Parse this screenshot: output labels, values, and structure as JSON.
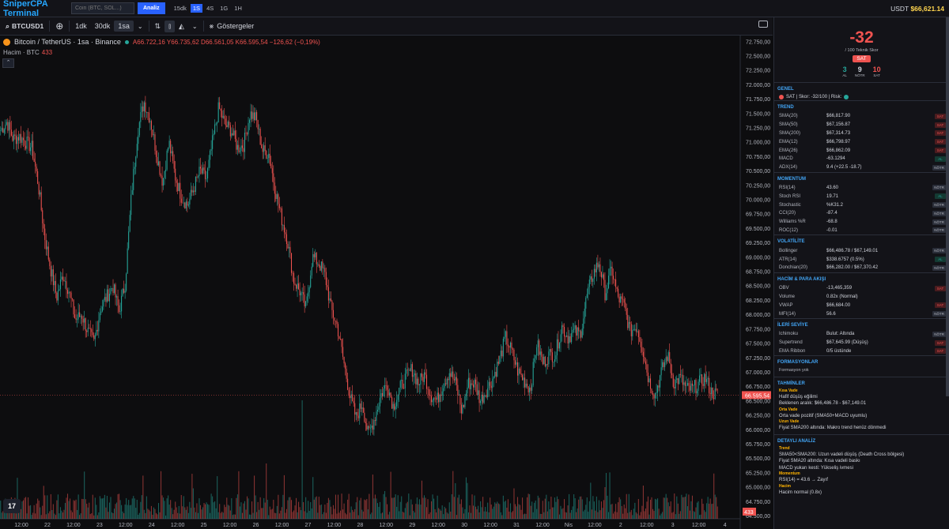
{
  "topbar": {
    "brand": "SniperCPA Terminal",
    "coin_placeholder": "Coin (BTC, SOL...)",
    "analyze_label": "Analiz",
    "timeframes": [
      "15dk",
      "1S",
      "4S",
      "1G",
      "1H"
    ],
    "active_timeframe": "1S",
    "balance_label": "USDT",
    "balance_value": "$66,621.14"
  },
  "toolbar": {
    "symbol": "BTCUSD1",
    "intervals": [
      "1dk",
      "30dk",
      "1sa"
    ],
    "active_interval": "1sa",
    "indicators_label": "Göstergeler"
  },
  "chart": {
    "legend_title": "Bitcoin / TetherUS · 1sa · Binance",
    "ohlc_text": "A66.722,16  Y66.735,62  D66.561,05  K66.595,54  −126,62 (−0,19%)",
    "volume_label": "Hacim · BTC",
    "volume_value": "433",
    "price_labels": [
      "72.750,00",
      "72.500,00",
      "72.250,00",
      "72.000,00",
      "71.750,00",
      "71.500,00",
      "71.250,00",
      "71.000,00",
      "70.750,00",
      "70.500,00",
      "70.250,00",
      "70.000,00",
      "69.750,00",
      "69.500,00",
      "69.250,00",
      "69.000,00",
      "68.750,00",
      "68.500,00",
      "68.250,00",
      "68.000,00",
      "67.750,00",
      "67.500,00",
      "67.250,00",
      "67.000,00",
      "66.750,00",
      "66.500,00",
      "66.250,00",
      "66.000,00",
      "65.750,00",
      "65.500,00",
      "65.250,00",
      "65.000,00",
      "64.750,00",
      "64.500,00"
    ],
    "current_price_label": "66.595,54",
    "current_volume_label": "433",
    "time_labels": [
      "12:00",
      "22",
      "12:00",
      "23",
      "12:00",
      "24",
      "12:00",
      "25",
      "12:00",
      "26",
      "12:00",
      "27",
      "12:00",
      "28",
      "12:00",
      "29",
      "12:00",
      "30",
      "12:00",
      "31",
      "12:00",
      "Nis",
      "12:00",
      "2",
      "12:00",
      "3",
      "12:00",
      "4"
    ]
  },
  "chart_data": {
    "type": "candlestick",
    "ylim": [
      64500,
      72850
    ],
    "current_price": 66595.54,
    "close_path": [
      71200,
      71350,
      71050,
      71100,
      71000,
      70900,
      70300,
      69400,
      68800,
      68300,
      68700,
      68400,
      67900,
      68000,
      67700,
      67500,
      68100,
      68300,
      68500,
      68050,
      68550,
      70100,
      71200,
      71700,
      71400,
      70800,
      70300,
      71000,
      70400,
      70050,
      69900,
      70200,
      70500,
      70350,
      71000,
      71600,
      71300,
      71200,
      70900,
      70950,
      71500,
      71400,
      70850,
      70800,
      70200,
      69700,
      69300,
      68600,
      68400,
      68100,
      69000,
      68900,
      68700,
      68100,
      67800,
      67200,
      66600,
      66200,
      66450,
      65900,
      66200,
      66600,
      66800,
      66400,
      66700,
      66900,
      67050,
      66800,
      66950,
      66600,
      66500,
      66800,
      67000,
      66800,
      66300,
      66800,
      66800,
      66500,
      66700,
      66900,
      67200,
      67600,
      67350,
      67000,
      66850,
      66700,
      67500,
      67150,
      67300,
      67300,
      67800,
      67600,
      67700,
      67650,
      68300,
      68700,
      68900,
      68350,
      68800,
      68300,
      68150,
      67700,
      67800,
      67400,
      66850,
      66600,
      67000,
      67300,
      66800,
      66900,
      66700,
      66700,
      66800,
      66900,
      66650,
      66600
    ]
  },
  "panel": {
    "score": "-32",
    "score_sub": "/ 100 Teknik Skor",
    "verdict": "SAT",
    "counts": [
      {
        "n": "3",
        "label": "AL",
        "color": "#26a69a"
      },
      {
        "n": "9",
        "label": "NÖTR",
        "color": "#d1d4dc"
      },
      {
        "n": "10",
        "label": "SAT",
        "color": "#ef5350"
      }
    ],
    "genel_title": "GENEL",
    "genel_text": "SAT | Skor: -32/100 | Risk:",
    "trend_title": "TREND",
    "trend": [
      {
        "k": "SMA(20)",
        "v": "$66,817.90",
        "b": "SAT"
      },
      {
        "k": "SMA(50)",
        "v": "$67,156.87",
        "b": "SAT"
      },
      {
        "k": "SMA(200)",
        "v": "$67,314.73",
        "b": "SAT"
      },
      {
        "k": "EMA(12)",
        "v": "$66,798.97",
        "b": "SAT"
      },
      {
        "k": "EMA(26)",
        "v": "$66,862.09",
        "b": "SAT"
      },
      {
        "k": "MACD",
        "v": "-63.1294",
        "b": "AL"
      },
      {
        "k": "ADX(14)",
        "v": "9.4 (+22.5 -18.7)",
        "b": "NÖTR"
      }
    ],
    "momentum_title": "MOMENTUM",
    "momentum": [
      {
        "k": "RSI(14)",
        "v": "43.60",
        "b": "NÖTR"
      },
      {
        "k": "Stoch RSI",
        "v": "19.71",
        "b": "AL"
      },
      {
        "k": "Stochastic",
        "v": "%K31.2",
        "b": "NÖTR"
      },
      {
        "k": "CCI(20)",
        "v": "-87.4",
        "b": "NÖTR"
      },
      {
        "k": "Williams %R",
        "v": "-68.8",
        "b": "NÖTR"
      },
      {
        "k": "ROC(12)",
        "v": "-0.01",
        "b": "NÖTR"
      }
    ],
    "volatility_title": "VOLATİLİTE",
    "volatility": [
      {
        "k": "Bollinger",
        "v": "$66,486.78 / $67,149.01",
        "b": "NÖTR"
      },
      {
        "k": "ATR(14)",
        "v": "$338.6757 (0.5%)",
        "b": "AL"
      },
      {
        "k": "Donchian(20)",
        "v": "$66,282.00 / $67,370.42",
        "b": "NÖTR"
      }
    ],
    "volume_title": "HACİM & PARA AKIŞI",
    "volume": [
      {
        "k": "OBV",
        "v": "-13,465,359",
        "b": "SAT"
      },
      {
        "k": "Volume",
        "v": "0.82x (Normal)",
        "b": ""
      },
      {
        "k": "VWAP",
        "v": "$66,684.00",
        "b": "SAT"
      },
      {
        "k": "MFI(14)",
        "v": "56.6",
        "b": "NÖTR"
      }
    ],
    "advanced_title": "İLERİ SEVİYE",
    "advanced": [
      {
        "k": "Ichimoku",
        "v": "Bulut: Altında",
        "b": "NÖTR"
      },
      {
        "k": "Supertrend",
        "v": "$67,645.99 (Düşüş)",
        "b": "SAT"
      },
      {
        "k": "EMA Ribbon",
        "v": "0/5 üstünde",
        "b": "SAT"
      }
    ],
    "formations_title": "FORMASYONLAR",
    "formations_text": "Formasyon yok",
    "predictions_title": "TAHMİNLER",
    "short_label": "Kısa Vade",
    "short_text_1": "Hafif düşüş eğilimi",
    "short_text_2": "Beklenen aralık: $66,486.78 - $67,149.01",
    "mid_label": "Orta Vade",
    "mid_text": "Orta vade pozitif (SMA50+MACD uyumlu)",
    "long_label": "Uzun Vade",
    "long_text": "Fiyat SMA200 altında: Makro trend henüz dönmedi",
    "detail_title": "DETAYLI ANALİZ",
    "detail_trend_label": "Trend",
    "detail_trend_1": "SMA50<SMA200: Uzun vadeli düşüş (Death Cross bölgesi)",
    "detail_trend_2": "Fiyat SMA20 altında: Kısa vadeli baskı",
    "detail_trend_3": "MACD yukarı kesti: Yükseliş ivmesi",
    "detail_momentum_label": "Momentum",
    "detail_momentum_1": "RSI(14) = 43.6 → Zayıf",
    "detail_volume_label": "Hacim",
    "detail_volume_1": "Hacim normal (0.8x)"
  }
}
